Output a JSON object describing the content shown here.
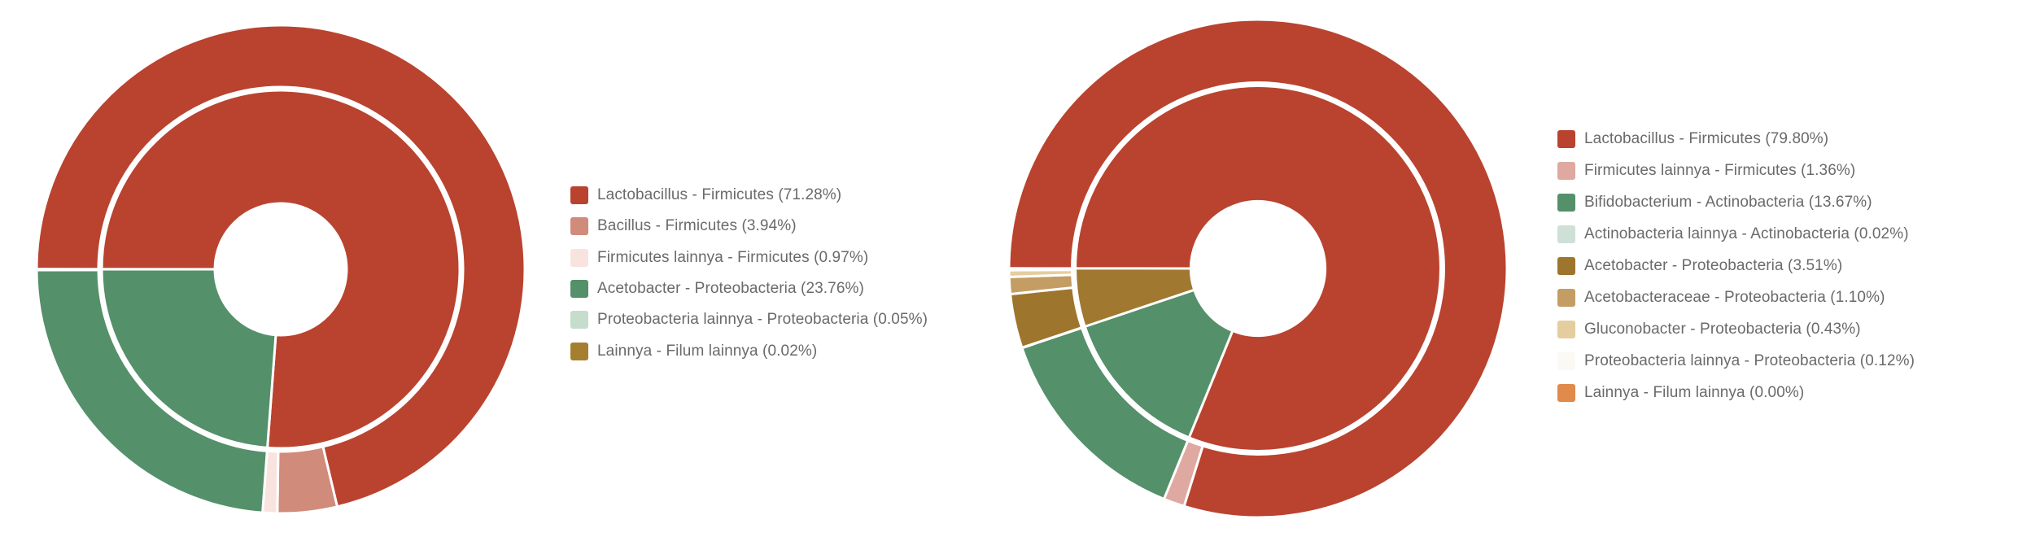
{
  "page": {
    "background_color": "#ffffff",
    "description_units": "percent"
  },
  "chart_data": [
    {
      "type": "pie",
      "subtype": "sunburst_donut_2_rings",
      "title": "",
      "legend_position": "right",
      "start_angle": "9-o-clock",
      "direction": "clockwise",
      "grid": false,
      "rings": {
        "inner": [
          {
            "label": "Firmicutes",
            "value": 76.19,
            "color": "#b9432f"
          },
          {
            "label": "Proteobacteria",
            "value": 23.81,
            "color": "#54906a"
          },
          {
            "label": "Filum lainnya",
            "value": 0.02,
            "color": "#a57e30"
          }
        ],
        "outer": [
          {
            "label": "Lactobacillus - Firmicutes (71.28%)",
            "value": 71.28,
            "color": "#b9432f"
          },
          {
            "label": "Bacillus - Firmicutes (3.94%)",
            "value": 3.94,
            "color": "#d08b7b"
          },
          {
            "label": "Firmicutes lainnya - Firmicutes (0.97%)",
            "value": 0.97,
            "color": "#f8e3df"
          },
          {
            "label": "Acetobacter - Proteobacteria (23.76%)",
            "value": 23.76,
            "color": "#54906a"
          },
          {
            "label": "Proteobacteria lainnya - Proteobacteria (0.05%)",
            "value": 0.05,
            "color": "#c6dccd"
          },
          {
            "label": "Lainnya - Filum lainnya (0.02%)",
            "value": 0.02,
            "color": "#a57e30"
          }
        ]
      }
    },
    {
      "type": "pie",
      "subtype": "sunburst_donut_2_rings",
      "title": "",
      "legend_position": "right",
      "start_angle": "9-o-clock",
      "direction": "clockwise",
      "grid": false,
      "rings": {
        "inner": [
          {
            "label": "Firmicutes",
            "value": 81.16,
            "color": "#b9432f"
          },
          {
            "label": "Actinobacteria",
            "value": 13.69,
            "color": "#54906a"
          },
          {
            "label": "Proteobacteria",
            "value": 5.16,
            "color": "#a0782f"
          },
          {
            "label": "Filum lainnya",
            "value": 0.0,
            "color": "#e08a4b"
          }
        ],
        "outer": [
          {
            "label": "Lactobacillus - Firmicutes (79.80%)",
            "value": 79.8,
            "color": "#b9432f"
          },
          {
            "label": "Firmicutes lainnya - Firmicutes (1.36%)",
            "value": 1.36,
            "color": "#dfa8a0"
          },
          {
            "label": "Bifidobacterium - Actinobacteria (13.67%)",
            "value": 13.67,
            "color": "#54906a"
          },
          {
            "label": "Actinobacteria lainnya - Actinobacteria (0.02%)",
            "value": 0.02,
            "color": "#cfe0d6"
          },
          {
            "label": "Acetobacter - Proteobacteria (3.51%)",
            "value": 3.51,
            "color": "#9e752c"
          },
          {
            "label": "Acetobacteraceae - Proteobacteria (1.10%)",
            "value": 1.1,
            "color": "#c49d64"
          },
          {
            "label": "Gluconobacter - Proteobacteria (0.43%)",
            "value": 0.43,
            "color": "#e4cd9e"
          },
          {
            "label": "Proteobacteria lainnya - Proteobacteria (0.12%)",
            "value": 0.12,
            "color": "#fbf9f3"
          },
          {
            "label": "Lainnya - Filum lainnya (0.00%)",
            "value": 0.0,
            "color": "#e08a4b"
          }
        ]
      }
    }
  ]
}
